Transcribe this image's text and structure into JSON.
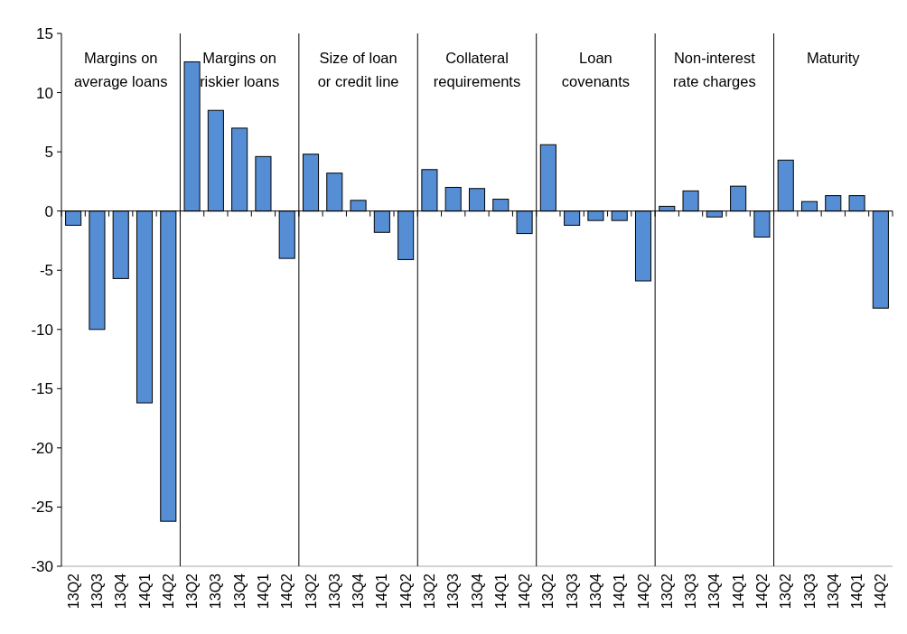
{
  "chart_data": {
    "type": "bar",
    "categories": [
      "13Q2",
      "13Q3",
      "13Q4",
      "14Q1",
      "14Q2",
      "13Q2",
      "13Q3",
      "13Q4",
      "14Q1",
      "14Q2",
      "13Q2",
      "13Q3",
      "13Q4",
      "14Q1",
      "14Q2",
      "13Q2",
      "13Q3",
      "13Q4",
      "14Q1",
      "14Q2",
      "13Q2",
      "13Q3",
      "13Q4",
      "14Q1",
      "14Q2",
      "13Q2",
      "13Q3",
      "13Q4",
      "14Q1",
      "14Q2",
      "13Q2",
      "13Q3",
      "13Q4",
      "14Q1",
      "14Q2"
    ],
    "values": [
      -1.2,
      -10,
      -5.7,
      -16.2,
      -26.2,
      12.6,
      8.5,
      7,
      4.6,
      -4,
      4.8,
      3.2,
      0.9,
      -1.8,
      -4.1,
      3.5,
      2,
      1.9,
      1,
      -1.9,
      5.6,
      -1.2,
      -0.8,
      -0.8,
      -5.9,
      0.4,
      1.7,
      -0.5,
      2.1,
      -2.2,
      4.3,
      0.8,
      1.3,
      1.3,
      -8.2
    ],
    "color": "#558ed5",
    "ylim": [
      -30,
      15
    ],
    "yticks": [
      -30,
      -25,
      -20,
      -15,
      -10,
      -5,
      0,
      5,
      10,
      15
    ],
    "annotations": [
      "Margins on average loans",
      "Margins on riskier loans",
      "Size of loan or credit line",
      "Collateral requirements",
      "Loan covenants",
      "Non-interest rate charges",
      "Maturity"
    ]
  }
}
